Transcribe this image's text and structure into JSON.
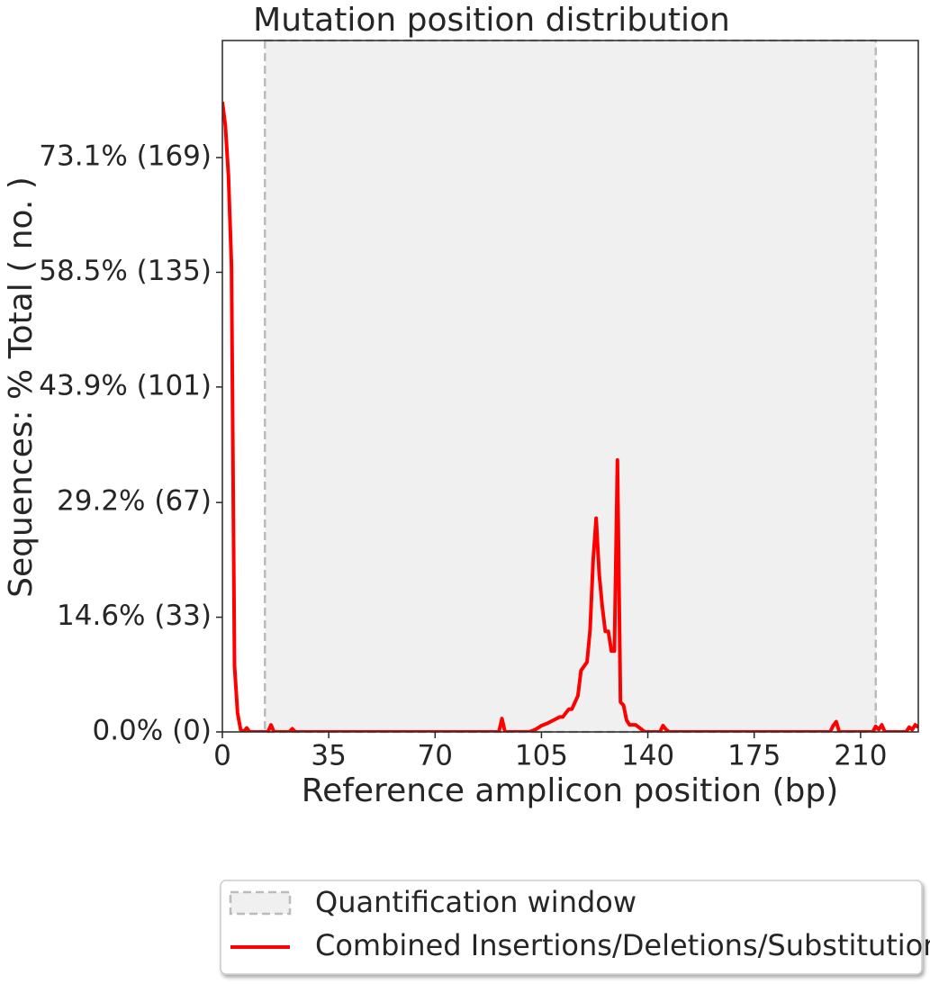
{
  "chart_data": {
    "type": "line",
    "title": "Mutation position distribution",
    "x_label": "Reference amplicon position (bp)",
    "y_label": "Sequences: % Total ( no. )",
    "xlim": [
      0,
      229
    ],
    "xticks": [
      0,
      35,
      70,
      105,
      140,
      175,
      210
    ],
    "ylim": [
      0,
      88
    ],
    "yticks": [
      {
        "value": 0,
        "label": "0.0% (0)"
      },
      {
        "value": 14.6,
        "label": "14.6% (33)"
      },
      {
        "value": 29.2,
        "label": "29.2% (67)"
      },
      {
        "value": 43.9,
        "label": "43.9% (101)"
      },
      {
        "value": 58.5,
        "label": "58.5% (135)"
      },
      {
        "value": 73.1,
        "label": "73.1% (169)"
      }
    ],
    "window": {
      "name": "Quantification window",
      "range": [
        14,
        215
      ],
      "color": "#bbbbbb"
    },
    "x": [
      0,
      1,
      2,
      3,
      4,
      5,
      6,
      7,
      8,
      9,
      10,
      15,
      16,
      17,
      22,
      23,
      24,
      91,
      92,
      93,
      101,
      103,
      105,
      107,
      109,
      111,
      112,
      114,
      115,
      117,
      118,
      120,
      121,
      122,
      123,
      124,
      125,
      126,
      127,
      128,
      129,
      130,
      131,
      132,
      133,
      134,
      136,
      138,
      139,
      144,
      145,
      146,
      147,
      200,
      201,
      202,
      203,
      214,
      215,
      216,
      217,
      218,
      225,
      226,
      227,
      228,
      229
    ],
    "series": [
      {
        "name": "Combined Insertions/Deletions/Substitutions",
        "color": "#ff0000",
        "values": [
          80.2,
          77.1,
          70.8,
          59.4,
          8.4,
          2.4,
          0.3,
          0,
          0.5,
          0,
          0,
          0,
          0.9,
          0,
          0,
          0.4,
          0,
          0,
          1.7,
          0,
          0,
          0.3,
          0.8,
          1.1,
          1.5,
          1.9,
          1.9,
          2.9,
          2.9,
          4.6,
          7.8,
          8.9,
          13,
          21.8,
          27.2,
          20.1,
          16,
          12.8,
          12.8,
          10.3,
          10.3,
          34.6,
          3.8,
          3.4,
          1.5,
          0.9,
          0.9,
          0.3,
          0,
          0,
          0.8,
          0.3,
          0,
          0,
          0.8,
          1.3,
          0,
          0,
          0.7,
          0.3,
          0.9,
          0,
          0,
          0.6,
          0.3,
          0.9,
          0.6
        ]
      }
    ]
  }
}
